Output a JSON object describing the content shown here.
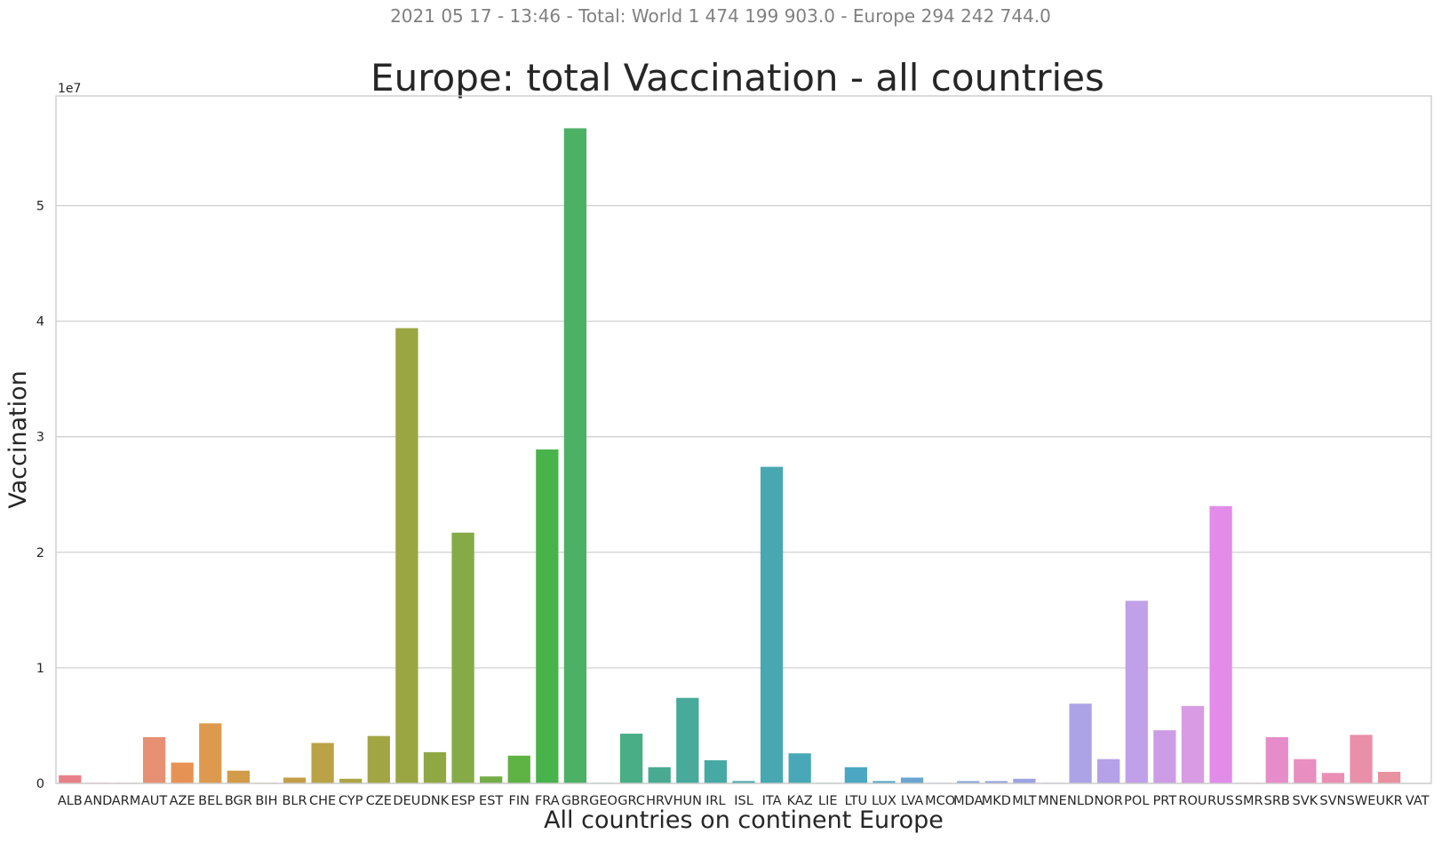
{
  "suptitle": "2021 05 17 - 13:46 - Total: World 1 474 199 903.0 - Europe 294 242 744.0",
  "chart_data": {
    "type": "bar",
    "title": "Europe: total Vaccination - all countries",
    "xlabel": "All countries on continent Europe",
    "ylabel": "Vaccination",
    "y_offset_label": "1e7",
    "y_multiplier": 10000000,
    "ylim": [
      0,
      5.95
    ],
    "yticks": [
      0,
      1,
      2,
      3,
      4,
      5
    ],
    "grid": true,
    "legend": "none",
    "categories": [
      "ALB",
      "AND",
      "ARM",
      "AUT",
      "AZE",
      "BEL",
      "BGR",
      "BIH",
      "BLR",
      "CHE",
      "CYP",
      "CZE",
      "DEU",
      "DNK",
      "ESP",
      "EST",
      "FIN",
      "FRA",
      "GBR",
      "GEO",
      "GRC",
      "HRV",
      "HUN",
      "IRL",
      "ISL",
      "ITA",
      "KAZ",
      "LIE",
      "LTU",
      "LUX",
      "LVA",
      "MCO",
      "MDA",
      "MKD",
      "MLT",
      "MNE",
      "NLD",
      "NOR",
      "POL",
      "PRT",
      "ROU",
      "RUS",
      "SMR",
      "SRB",
      "SVK",
      "SVN",
      "SWE",
      "UKR",
      "VAT"
    ],
    "values": [
      0.07,
      0.005,
      0.005,
      0.4,
      0.18,
      0.52,
      0.11,
      0.005,
      0.05,
      0.35,
      0.04,
      0.41,
      3.94,
      0.27,
      2.17,
      0.06,
      0.24,
      2.89,
      5.67,
      0.005,
      0.43,
      0.14,
      0.74,
      0.2,
      0.02,
      2.74,
      0.26,
      0.005,
      0.14,
      0.02,
      0.05,
      0.005,
      0.02,
      0.02,
      0.04,
      0.005,
      0.69,
      0.21,
      1.58,
      0.46,
      0.67,
      2.4,
      0.005,
      0.4,
      0.21,
      0.09,
      0.42,
      0.1,
      0.0
    ]
  },
  "colors": [
    "#e8808a",
    "#e98a72",
    "#ea8c75",
    "#e89073",
    "#e79255",
    "#dd9a4e",
    "#d29b4a",
    "#c99c47",
    "#c29f46",
    "#b9a346",
    "#aca545",
    "#a2a544",
    "#9aa642",
    "#8fa843",
    "#84ab45",
    "#74ae47",
    "#5fb345",
    "#48b34a",
    "#4cb065",
    "#4db07a",
    "#49ad86",
    "#48ab91",
    "#47aa9b",
    "#47a9a4",
    "#47a8ab",
    "#48a8b1",
    "#49a8b7",
    "#4aa8bd",
    "#4ba7c3",
    "#56a6c9",
    "#6aa6d1",
    "#7ba8d6",
    "#8aa6da",
    "#95a5de",
    "#9da4e2",
    "#a5a3e5",
    "#aca3e7",
    "#b4a1e8",
    "#c0a0e8",
    "#cd9ce6",
    "#d99be4",
    "#e28be9",
    "#e38ad7",
    "#e68cc8",
    "#e88ec0",
    "#ea8eb4",
    "#e98fa9",
    "#e9919f",
    "#e89396"
  ]
}
